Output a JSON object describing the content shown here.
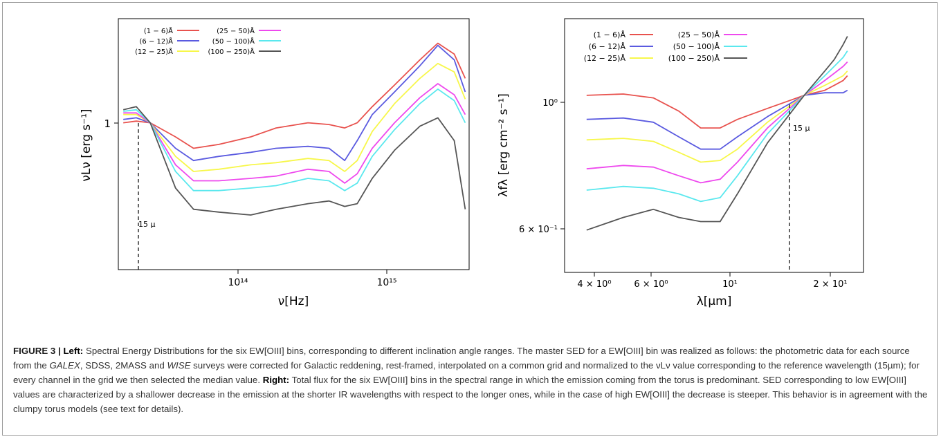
{
  "caption": {
    "figure_label": "FIGURE 3 | ",
    "left_label": "Left:",
    "text_1": " Spectral Energy Distributions for the six EW[OIII] bins, corresponding to different inclination angle ranges. The master SED for a EW[OIII] bin was realized as follows: the photometric data for each source from the ",
    "galex": "GALEX",
    "text_2": ", SDSS, 2MASS and ",
    "wise": "WISE",
    "text_3": " surveys were corrected for Galactic reddening, rest-framed, interpolated on a common grid and normalized to the νLν value corresponding to the reference wavelength (15µm); for every channel in the grid we then selected the median value. ",
    "right_label": "Right:",
    "text_4": " Total flux for the six EW[OIII] bins in the spectral range in which the emission coming from the torus is predominant. SED corresponding to low EW[OIII] values are characterized by a shallower decrease in the emission at the shorter IR wavelengths with respect to the longer ones, while in the case of high EW[OIII] the decrease is steeper. This behavior is in agreement with the clumpy torus models (see text for details)."
  },
  "chart_data": [
    {
      "type": "line",
      "panel": "left",
      "xlabel": "ν[Hz]",
      "ylabel": "νLν [erg s⁻¹]",
      "xscale": "log",
      "yscale": "log",
      "xlim": [
        12000000000000.0,
        3300000000000000.0
      ],
      "x_ticks": [
        "10¹⁴",
        "10¹⁵"
      ],
      "y_ticks": [
        "1"
      ],
      "annotation": "15 μ",
      "reference_x": 20000000000000.0,
      "legend_position": "upper-left",
      "x": [
        13000000000000.0,
        16000000000000.0,
        20000000000000.0,
        30000000000000.0,
        40000000000000.0,
        60000000000000.0,
        100000000000000.0,
        150000000000000.0,
        250000000000000.0,
        350000000000000.0,
        450000000000000.0,
        550000000000000.0,
        700000000000000.0,
        1000000000000000.0,
        1500000000000000.0,
        2000000000000000.0,
        2600000000000000.0,
        3100000000000000.0
      ],
      "series": [
        {
          "name": "(1 − 6)Å",
          "color": "#e8524e",
          "values": [
            1.0,
            1.01,
            1.0,
            0.92,
            0.86,
            0.88,
            0.92,
            0.97,
            1.0,
            0.99,
            0.97,
            1.0,
            1.1,
            1.25,
            1.45,
            1.6,
            1.5,
            1.3
          ]
        },
        {
          "name": "(6 − 12)Å",
          "color": "#5a5ae0",
          "values": [
            1.02,
            1.03,
            1.0,
            0.86,
            0.8,
            0.82,
            0.84,
            0.86,
            0.87,
            0.86,
            0.8,
            0.9,
            1.05,
            1.2,
            1.4,
            1.58,
            1.45,
            1.2
          ]
        },
        {
          "name": "(12 − 25)Å",
          "color": "#f7f74a",
          "values": [
            1.05,
            1.05,
            1.0,
            0.82,
            0.75,
            0.76,
            0.78,
            0.79,
            0.81,
            0.8,
            0.75,
            0.8,
            0.95,
            1.12,
            1.3,
            1.42,
            1.35,
            1.15
          ]
        },
        {
          "name": "(25 − 50)Å",
          "color": "#ee49ee",
          "values": [
            1.06,
            1.06,
            1.0,
            0.78,
            0.71,
            0.71,
            0.72,
            0.73,
            0.76,
            0.75,
            0.7,
            0.74,
            0.86,
            1.0,
            1.16,
            1.26,
            1.18,
            1.05
          ]
        },
        {
          "name": "(50 − 100)Å",
          "color": "#5ae8ee",
          "values": [
            1.07,
            1.08,
            1.0,
            0.75,
            0.67,
            0.67,
            0.68,
            0.69,
            0.72,
            0.71,
            0.67,
            0.7,
            0.82,
            0.96,
            1.12,
            1.22,
            1.14,
            1.0
          ]
        },
        {
          "name": "(100 − 250)Å",
          "color": "#555555",
          "values": [
            1.08,
            1.1,
            1.0,
            0.68,
            0.6,
            0.59,
            0.58,
            0.6,
            0.62,
            0.63,
            0.61,
            0.62,
            0.72,
            0.85,
            0.98,
            1.03,
            0.9,
            0.6
          ]
        }
      ]
    },
    {
      "type": "line",
      "panel": "right",
      "xlabel": "λ[μm]",
      "ylabel": "λfλ [erg cm⁻² s⁻¹]",
      "xscale": "log",
      "yscale": "log",
      "xlim": [
        3.5,
        21.5
      ],
      "x_ticks": [
        "4 × 10⁰",
        "6 × 10⁰",
        "10¹",
        "2 × 10¹"
      ],
      "y_ticks": [
        "10⁰",
        "6 × 10⁻¹"
      ],
      "annotation": "15 μ",
      "reference_x": 15,
      "legend_position": "upper-left",
      "x": [
        4,
        5,
        6,
        7,
        8,
        9,
        10,
        12,
        15,
        17,
        18,
        19,
        19.5
      ],
      "series": [
        {
          "name": "(1 − 6)Å",
          "color": "#e8524e",
          "values": [
            1.0,
            1.005,
            0.99,
            0.94,
            0.88,
            0.88,
            0.91,
            0.95,
            1.0,
            1.02,
            1.04,
            1.06,
            1.08
          ]
        },
        {
          "name": "(6 − 12)Å",
          "color": "#5a5ae0",
          "values": [
            0.91,
            0.915,
            0.9,
            0.85,
            0.81,
            0.81,
            0.85,
            0.92,
            1.0,
            1.01,
            1.01,
            1.01,
            1.02
          ]
        },
        {
          "name": "(12 − 25)Å",
          "color": "#f7f74a",
          "values": [
            0.84,
            0.845,
            0.835,
            0.8,
            0.77,
            0.775,
            0.81,
            0.9,
            1.0,
            1.04,
            1.06,
            1.08,
            1.1
          ]
        },
        {
          "name": "(25 − 50)Å",
          "color": "#ee49ee",
          "values": [
            0.75,
            0.76,
            0.755,
            0.73,
            0.71,
            0.72,
            0.77,
            0.88,
            1.0,
            1.06,
            1.09,
            1.12,
            1.14
          ]
        },
        {
          "name": "(50 − 100)Å",
          "color": "#5ae8ee",
          "values": [
            0.69,
            0.7,
            0.695,
            0.68,
            0.66,
            0.67,
            0.73,
            0.86,
            1.0,
            1.08,
            1.12,
            1.16,
            1.19
          ]
        },
        {
          "name": "(100 − 250)Å",
          "color": "#555555",
          "values": [
            0.59,
            0.62,
            0.64,
            0.62,
            0.61,
            0.61,
            0.68,
            0.83,
            1.0,
            1.1,
            1.15,
            1.22,
            1.26
          ]
        }
      ]
    }
  ]
}
